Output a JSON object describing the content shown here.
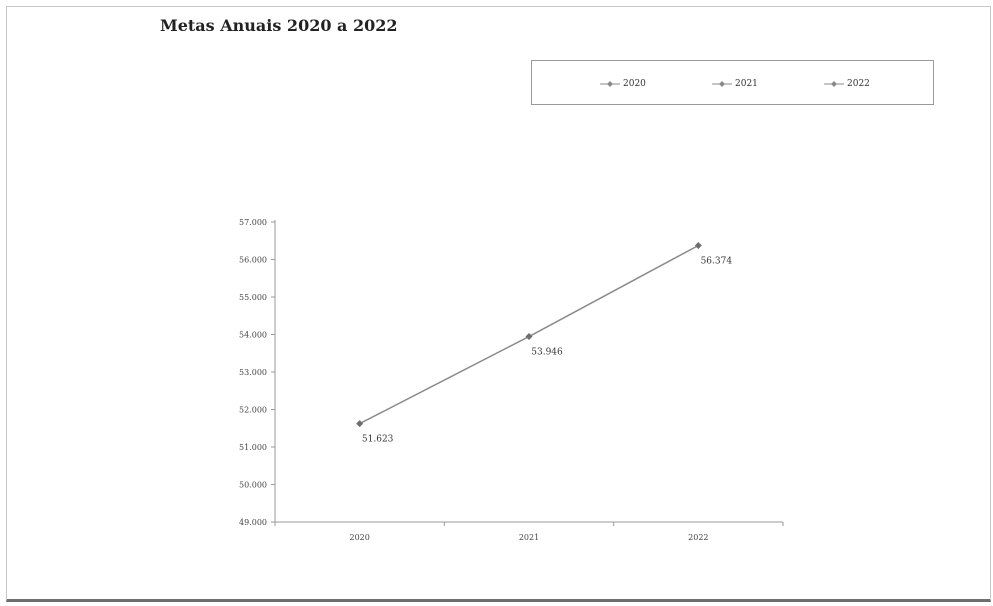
{
  "chart_data": {
    "type": "line",
    "title": "Metas Anuais 2020 a 2022",
    "categories": [
      "2020",
      "2021",
      "2022"
    ],
    "values": [
      51623,
      53946,
      56374
    ],
    "data_labels": [
      "51.623",
      "53.946",
      "56.374"
    ],
    "ylim": [
      49000,
      57000
    ],
    "yticks": [
      "49.000",
      "50.000",
      "51.000",
      "52.000",
      "53.000",
      "54.000",
      "55.000",
      "56.000",
      "57.000"
    ],
    "legend": [
      "2020",
      "2021",
      "2022"
    ],
    "legend_position": "top-right",
    "grid": false,
    "line_color": "#8a8a8a",
    "marker_color": "#6e6e6e"
  }
}
